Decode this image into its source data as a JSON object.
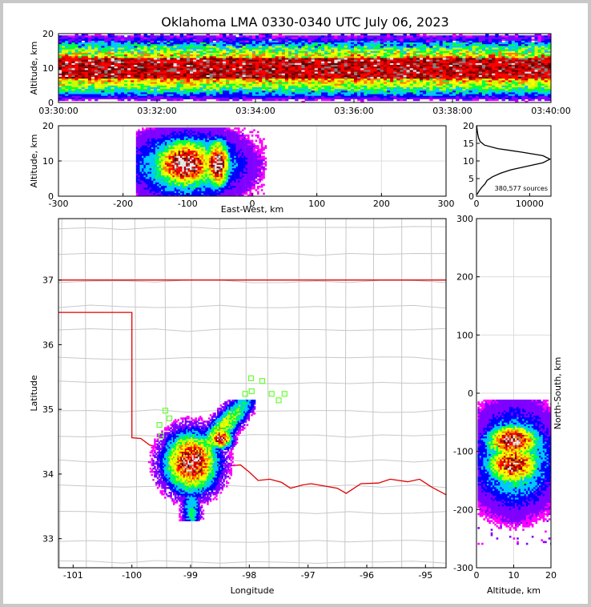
{
  "chart_data": {
    "type": "heatmap",
    "title": "Oklahoma LMA 0330-0340 UTC July 06, 2023",
    "time_altitude": {
      "ylabel": "Altitude, km",
      "ylim": [
        0,
        20
      ],
      "yticks": [
        "0",
        "10",
        "20"
      ],
      "xticks": [
        "03:30:00",
        "03:32:00",
        "03:34:00",
        "03:36:00",
        "03:38:00",
        "03:40:00"
      ],
      "core_altitude_km": [
        7,
        13
      ]
    },
    "ew_altitude": {
      "xlabel": "East-West, km",
      "ylabel": "Altitude, km",
      "xlim": [
        -300,
        300
      ],
      "ylim": [
        0,
        20
      ],
      "xticks": [
        "-300",
        "-200",
        "-100",
        "0",
        "100",
        "200",
        "300"
      ],
      "yticks": [
        "0",
        "10",
        "20"
      ],
      "cells": [
        {
          "center_km": -105,
          "width_km": 55,
          "alt_km": 9.5
        },
        {
          "center_km": -55,
          "width_km": 22,
          "alt_km": 9.5
        }
      ]
    },
    "histogram": {
      "annotation": "380,577 sources",
      "xlim": [
        0,
        14000
      ],
      "ylim": [
        0,
        20
      ],
      "xticks": [
        "0",
        "10000"
      ],
      "yticks": [
        "0",
        "5",
        "10",
        "15",
        "20"
      ],
      "curve": [
        {
          "alt": 0.5,
          "count": 100
        },
        {
          "alt": 1.5,
          "count": 500
        },
        {
          "alt": 2.5,
          "count": 1000
        },
        {
          "alt": 3.5,
          "count": 1600
        },
        {
          "alt": 4.5,
          "count": 2000
        },
        {
          "alt": 5.5,
          "count": 3000
        },
        {
          "alt": 6.5,
          "count": 4500
        },
        {
          "alt": 7.5,
          "count": 6500
        },
        {
          "alt": 8.5,
          "count": 9500
        },
        {
          "alt": 9.5,
          "count": 12500
        },
        {
          "alt": 10.5,
          "count": 13800
        },
        {
          "alt": 11.5,
          "count": 12500
        },
        {
          "alt": 12.5,
          "count": 8500
        },
        {
          "alt": 13.5,
          "count": 4000
        },
        {
          "alt": 14.5,
          "count": 1500
        },
        {
          "alt": 15.5,
          "count": 700
        },
        {
          "alt": 16.5,
          "count": 400
        },
        {
          "alt": 17.5,
          "count": 250
        },
        {
          "alt": 18.5,
          "count": 150
        },
        {
          "alt": 19.5,
          "count": 80
        },
        {
          "alt": 20,
          "count": 50
        }
      ]
    },
    "plan_view": {
      "xlabel": "Longitude",
      "ylabel": "Latitude",
      "xlim": [
        -101.25,
        -94.65
      ],
      "ylim": [
        32.55,
        37.95
      ],
      "xticks": [
        "-101",
        "-100",
        "-99",
        "-98",
        "-97",
        "-96",
        "-95"
      ],
      "yticks": [
        "33",
        "34",
        "35",
        "36",
        "37"
      ],
      "oklahoma_border": [
        [
          -101.25,
          36.5
        ],
        [
          -100.0,
          36.5
        ],
        [
          -100.0,
          34.56
        ],
        [
          -99.85,
          34.55
        ],
        [
          -99.7,
          34.45
        ],
        [
          -99.55,
          34.41
        ],
        [
          -99.4,
          34.37
        ],
        [
          -99.2,
          34.34
        ],
        [
          -99.0,
          34.22
        ],
        [
          -98.8,
          34.16
        ],
        [
          -98.6,
          34.15
        ],
        [
          -98.4,
          34.12
        ],
        [
          -98.15,
          34.14
        ],
        [
          -98.0,
          34.03
        ],
        [
          -97.85,
          33.9
        ],
        [
          -97.65,
          33.92
        ],
        [
          -97.45,
          33.87
        ],
        [
          -97.3,
          33.78
        ],
        [
          -97.1,
          33.83
        ],
        [
          -96.95,
          33.85
        ],
        [
          -96.75,
          33.82
        ],
        [
          -96.5,
          33.78
        ],
        [
          -96.35,
          33.7
        ],
        [
          -96.1,
          33.85
        ],
        [
          -95.8,
          33.86
        ],
        [
          -95.6,
          33.92
        ],
        [
          -95.3,
          33.88
        ],
        [
          -95.1,
          33.92
        ],
        [
          -94.9,
          33.8
        ],
        [
          -94.65,
          33.68
        ]
      ],
      "northern_border_lat": 37.0,
      "stations": [
        [
          -97.97,
          35.48
        ],
        [
          -97.78,
          35.44
        ],
        [
          -98.07,
          35.24
        ],
        [
          -97.96,
          35.28
        ],
        [
          -97.62,
          35.24
        ],
        [
          -97.5,
          35.14
        ],
        [
          -97.4,
          35.24
        ],
        [
          -99.43,
          34.98
        ],
        [
          -99.36,
          34.86
        ],
        [
          -99.53,
          34.76
        ],
        [
          -99.5,
          34.59
        ]
      ],
      "cells": [
        {
          "lon": -99.0,
          "lat": 34.2,
          "rx": 0.55,
          "ry": 0.5
        },
        {
          "lon": -98.5,
          "lat": 34.57,
          "rx": 0.22,
          "ry": 0.18
        }
      ]
    },
    "ns_altitude": {
      "xlabel": "Altitude, km",
      "ylabel": "North-South, km",
      "xlim": [
        0,
        20
      ],
      "ylim": [
        -300,
        300
      ],
      "xticks": [
        "0",
        "10",
        "20"
      ],
      "yticks": [
        "-300",
        "-200",
        "-100",
        "0",
        "100",
        "200",
        "300"
      ]
    }
  }
}
